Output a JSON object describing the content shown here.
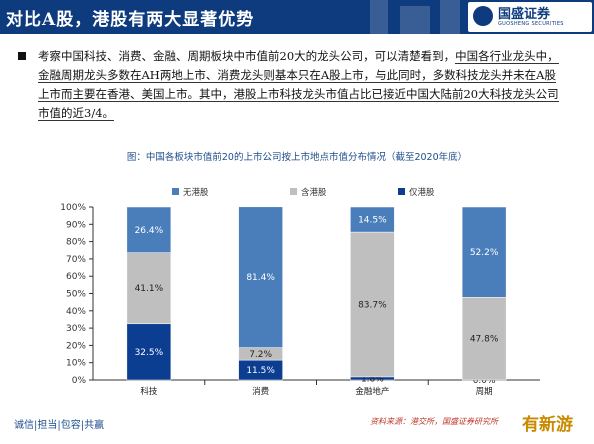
{
  "header": {
    "title": "对比A股，港股有两大显著优势",
    "logo_cn": "国盛证券",
    "logo_en": "GUOSHENG SECURITIES"
  },
  "bullet": {
    "text_plain": "考察中国科技、消费、金融、周期板块中市值前20大的龙头公司，可以清楚看到，",
    "text_underlined": "中国各行业龙头中，金融周期龙头多数在AH两地上市、消费龙头则基本只在A股上市，与此同时，多数科技龙头并未在A股上市而主要在香港、美国上市。其中，港股上市科技龙头市值占比已接近中国大陆前20大科技龙头公司市值的近3/4。"
  },
  "chart_data": {
    "type": "bar",
    "stacked": true,
    "title": "图：中国各板块市值前20的上市公司按上市地点市值分布情况（截至2020年底）",
    "categories": [
      "科技",
      "消费",
      "金融地产",
      "周期"
    ],
    "series": [
      {
        "name": "仅港股",
        "color": "#0b3d91",
        "values": [
          32.5,
          11.5,
          1.8,
          0.0
        ]
      },
      {
        "name": "含港股",
        "color": "#bfbfbf",
        "values": [
          41.1,
          7.2,
          83.7,
          47.8
        ]
      },
      {
        "name": "无港股",
        "color": "#4a7ebb",
        "values": [
          26.4,
          81.4,
          14.5,
          52.2
        ]
      }
    ],
    "value_labels": [
      [
        "32.5%",
        "11.5%",
        "1.8%",
        "0.0%"
      ],
      [
        "41.1%",
        "7.2%",
        "83.7%",
        "47.8%"
      ],
      [
        "26.4%",
        "81.4%",
        "14.5%",
        "52.2%"
      ]
    ],
    "legend_order": [
      "无港股",
      "含港股",
      "仅港股"
    ],
    "legend_placement": "top",
    "y_ticks": [
      "0%",
      "10%",
      "20%",
      "30%",
      "40%",
      "50%",
      "60%",
      "70%",
      "80%",
      "90%",
      "100%"
    ],
    "ylim": [
      0,
      100
    ],
    "grid": false
  },
  "footer": {
    "left": "诚信|担当|包容|共赢",
    "source": "资料来源：港交所，国盛证券研究所",
    "watermark": "有新游"
  }
}
